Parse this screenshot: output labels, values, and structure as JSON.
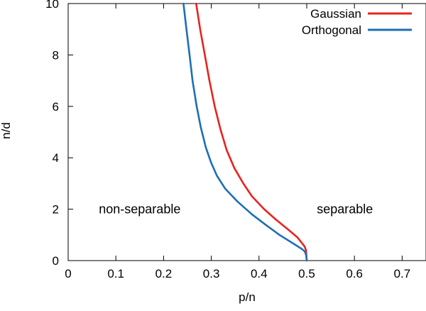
{
  "chart_data": {
    "type": "line",
    "title": "",
    "xlabel": "p/n",
    "ylabel": "n/d",
    "xlim": [
      0,
      0.75
    ],
    "ylim": [
      0,
      10
    ],
    "xticks": [
      "0",
      "0.1",
      "0.2",
      "0.3",
      "0.4",
      "0.5",
      "0.6",
      "0.7"
    ],
    "yticks": [
      "0",
      "2",
      "4",
      "6",
      "8",
      "10"
    ],
    "grid": false,
    "legend_position": "top-right",
    "annotations": [
      {
        "text": "non-separable",
        "x": 0.15,
        "y": 2
      },
      {
        "text": "separable",
        "x": 0.58,
        "y": 2
      }
    ],
    "series": [
      {
        "name": "Gaussian",
        "color": "#e8231e",
        "x": [
          0.2683,
          0.2766,
          0.2864,
          0.2962,
          0.3072,
          0.3194,
          0.3321,
          0.3484,
          0.3671,
          0.3852,
          0.4108,
          0.4353,
          0.4617,
          0.4807,
          0.4955,
          0.4985,
          0.5
        ],
        "y": [
          10,
          9.0,
          8.0,
          7.0,
          6.0,
          5.1,
          4.3,
          3.6,
          3.0,
          2.5,
          2.0,
          1.6,
          1.2,
          0.9,
          0.55,
          0.4,
          0
        ]
      },
      {
        "name": "Orthogonal",
        "color": "#1c6fb5",
        "x": [
          0.2417,
          0.2479,
          0.2545,
          0.2607,
          0.2693,
          0.2778,
          0.2885,
          0.2999,
          0.3117,
          0.329,
          0.3546,
          0.3851,
          0.4134,
          0.4429,
          0.4731,
          0.4899,
          0.4961,
          0.499,
          0.5
        ],
        "y": [
          10,
          9.0,
          8.0,
          7.0,
          6.0,
          5.2,
          4.4,
          3.8,
          3.3,
          2.8,
          2.3,
          1.8,
          1.4,
          1.0,
          0.65,
          0.45,
          0.35,
          0.2,
          0
        ]
      }
    ]
  }
}
